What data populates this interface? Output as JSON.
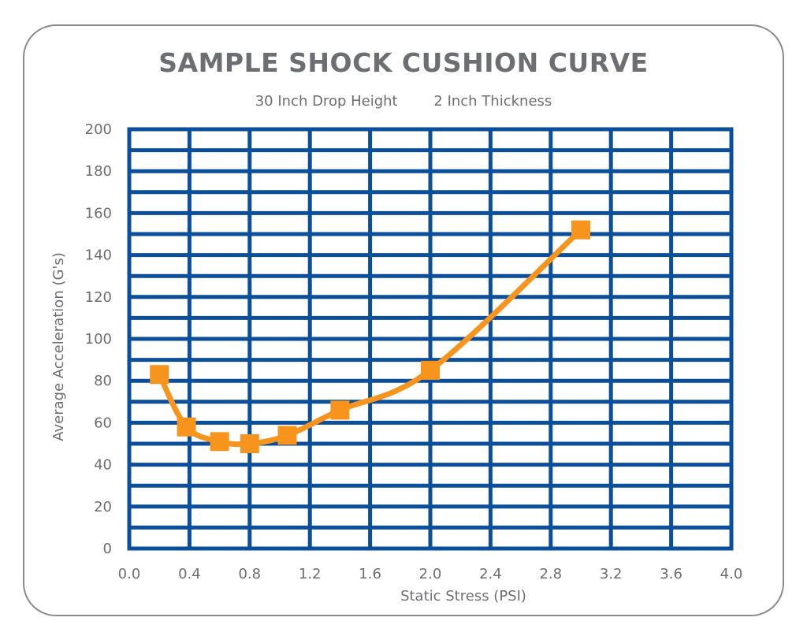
{
  "chart_data": {
    "type": "line",
    "title": "SAMPLE SHOCK CUSHION CURVE",
    "subtitle_parts": [
      "30 Inch Drop Height",
      "2 Inch Thickness"
    ],
    "xlabel": "Static Stress (PSI)",
    "ylabel": "Average Acceleration (G's)",
    "xlim": [
      0.0,
      4.0
    ],
    "ylim": [
      0,
      200
    ],
    "x_ticks": [
      "0.0",
      "0.4",
      "0.8",
      "1.2",
      "1.6",
      "2.0",
      "2.4",
      "2.8",
      "3.2",
      "3.6",
      "4.0"
    ],
    "y_ticks": [
      "0",
      "20",
      "40",
      "60",
      "80",
      "100",
      "120",
      "140",
      "160",
      "180",
      "200"
    ],
    "grid": true,
    "series": [
      {
        "x": [
          0.2,
          0.38,
          0.6,
          0.8,
          1.05,
          1.4,
          2.0,
          3.0
        ],
        "y": [
          83,
          58,
          51,
          50,
          54,
          66,
          85,
          152
        ]
      }
    ]
  },
  "colors": {
    "grid": "#0b4e99",
    "line": "#f7941d",
    "text": "#6d6e71",
    "frame": "#8a8a8a"
  }
}
